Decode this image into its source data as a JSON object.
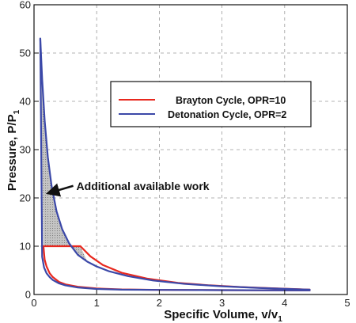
{
  "chart_data": {
    "type": "line",
    "xlabel": "Specific Volume, v/v",
    "xlabel_sub": "1",
    "ylabel": "Pressure, P/P",
    "ylabel_sub": "1",
    "xlim": [
      0,
      5
    ],
    "ylim": [
      0,
      60
    ],
    "x_ticks": [
      "0",
      "1",
      "2",
      "3",
      "4",
      "5"
    ],
    "y_ticks": [
      "0",
      "10",
      "20",
      "30",
      "40",
      "50",
      "60"
    ],
    "grid": true,
    "legend_position": "upper-right",
    "series": [
      {
        "name": "Brayton Cycle, OPR=10",
        "color": "#e8281e",
        "segments": [
          {
            "x": [
              0.15,
              0.74
            ],
            "y": [
              10,
              10
            ]
          },
          {
            "x": [
              0.74,
              0.9,
              1.1,
              1.4,
              1.8,
              2.3,
              2.8,
              3.3,
              3.8,
              4.4
            ],
            "y": [
              10,
              7.9,
              6.1,
              4.5,
              3.3,
              2.4,
              1.9,
              1.55,
              1.3,
              1.0
            ]
          },
          {
            "x": [
              0.15,
              0.17,
              0.2,
              0.25,
              0.3,
              0.4,
              0.5,
              0.7,
              1.0,
              1.4,
              2.0,
              3.0,
              4.4
            ],
            "y": [
              10,
              7.2,
              5.8,
              4.4,
              3.6,
              2.6,
              2.1,
              1.6,
              1.25,
              1.05,
              0.95,
              0.9,
              0.85
            ]
          }
        ]
      },
      {
        "name": "Detonation Cycle, OPR=2",
        "color": "#3b48a8",
        "segments": [
          {
            "x": [
              0.1,
              0.13,
              0.17,
              0.22,
              0.28,
              0.36,
              0.45,
              0.56,
              0.7,
              0.85,
              1.0,
              1.2,
              1.5,
              1.9,
              2.4,
              3.0,
              3.6,
              4.4
            ],
            "y": [
              53,
              44.5,
              36,
              28.5,
              22.5,
              17.2,
              13.5,
              10.6,
              8.2,
              6.8,
              5.8,
              4.8,
              3.8,
              2.9,
              2.2,
              1.7,
              1.35,
              1.0
            ]
          },
          {
            "x": [
              0.1,
              0.13,
              0.16,
              0.2,
              0.25,
              0.3,
              0.4,
              0.5,
              0.7,
              1.0,
              1.4,
              2.0,
              3.0,
              4.4
            ],
            "y": [
              53,
              7.8,
              5.6,
              4.4,
              3.6,
              3.0,
              2.3,
              1.9,
              1.45,
              1.15,
              1.0,
              0.95,
              0.9,
              0.85
            ]
          }
        ]
      }
    ],
    "shaded_region": {
      "label": "Additional available work",
      "fill": "#b4b4b4",
      "x": [
        0.1,
        0.13,
        0.17,
        0.22,
        0.28,
        0.36,
        0.45,
        0.56,
        0.7,
        0.85,
        0.74,
        0.15,
        0.15
      ],
      "y": [
        53,
        44.5,
        36,
        28.5,
        22.5,
        17.2,
        13.5,
        10.6,
        8.2,
        6.8,
        10,
        10,
        10
      ]
    },
    "annotation": {
      "text": "Additional available work",
      "at": [
        0.55,
        22.5
      ],
      "arrow_to": [
        0.18,
        21
      ]
    }
  }
}
